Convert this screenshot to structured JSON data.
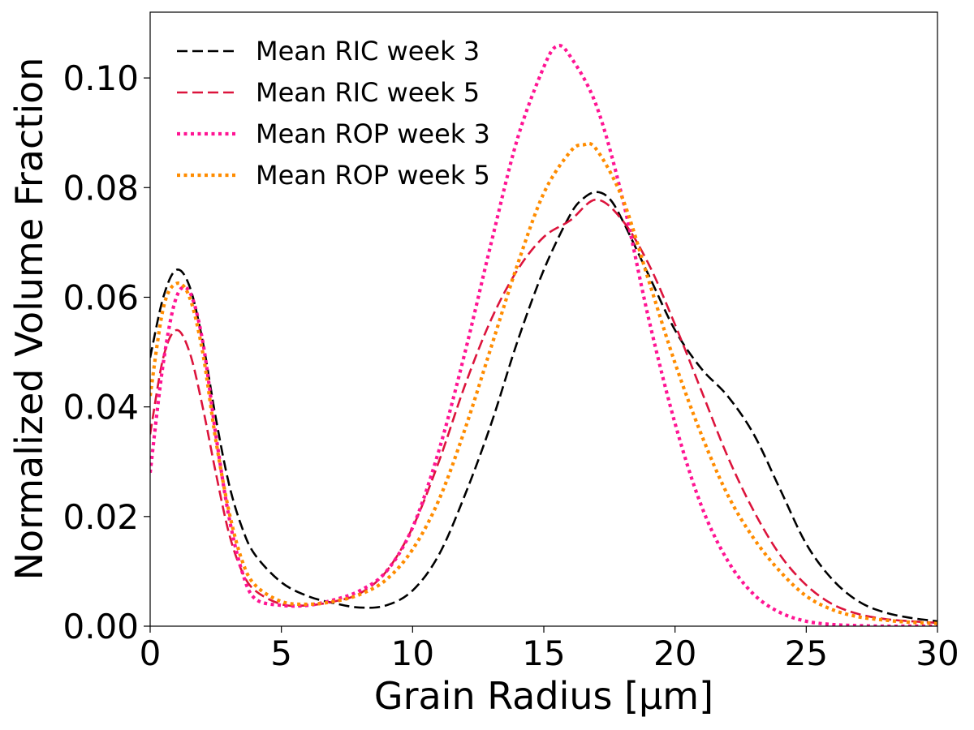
{
  "chart_data": {
    "type": "line",
    "title": "",
    "xlabel": "Grain Radius [μm]",
    "ylabel": "Normalized Volume Fraction",
    "xlim": [
      0,
      30
    ],
    "ylim": [
      0,
      0.112
    ],
    "xticks": [
      0,
      5,
      10,
      15,
      20,
      25,
      30
    ],
    "xtick_labels": [
      "0",
      "5",
      "10",
      "15",
      "20",
      "25",
      "30"
    ],
    "yticks": [
      0,
      0.02,
      0.04,
      0.06,
      0.08,
      0.1
    ],
    "ytick_labels": [
      "0.00",
      "0.02",
      "0.04",
      "0.06",
      "0.08",
      "0.10"
    ],
    "grid": false,
    "legend_position": "top-left",
    "series": [
      {
        "name": "Mean RIC week 3",
        "color": "#000000",
        "style": "dashed",
        "x": [
          0,
          0.5,
          1,
          1.5,
          2,
          2.5,
          3,
          3.5,
          4,
          5,
          6,
          7,
          8,
          9,
          10,
          11,
          12,
          13,
          14,
          15,
          16,
          16.5,
          17,
          17.5,
          18,
          19,
          20,
          21,
          22,
          23,
          24,
          25,
          26,
          27,
          28,
          29,
          30
        ],
        "y": [
          0.049,
          0.06,
          0.065,
          0.062,
          0.052,
          0.038,
          0.026,
          0.018,
          0.013,
          0.008,
          0.0055,
          0.0042,
          0.0034,
          0.0038,
          0.0065,
          0.013,
          0.024,
          0.037,
          0.052,
          0.065,
          0.075,
          0.078,
          0.0792,
          0.078,
          0.074,
          0.064,
          0.054,
          0.047,
          0.042,
          0.035,
          0.025,
          0.015,
          0.0085,
          0.0045,
          0.0025,
          0.0015,
          0.0009
        ]
      },
      {
        "name": "Mean RIC week 5",
        "color": "#dc143c",
        "style": "dashed",
        "x": [
          0,
          0.5,
          1,
          1.5,
          2,
          2.5,
          3,
          3.5,
          4,
          5,
          6,
          7,
          8,
          9,
          10,
          11,
          12,
          13,
          14,
          15,
          16,
          17,
          18,
          19,
          20,
          21,
          22,
          23,
          24,
          25,
          26,
          27,
          28,
          29,
          30
        ],
        "y": [
          0.035,
          0.049,
          0.054,
          0.05,
          0.04,
          0.028,
          0.017,
          0.01,
          0.0065,
          0.004,
          0.0038,
          0.0045,
          0.006,
          0.01,
          0.018,
          0.03,
          0.044,
          0.056,
          0.065,
          0.071,
          0.074,
          0.0778,
          0.074,
          0.066,
          0.055,
          0.043,
          0.031,
          0.021,
          0.013,
          0.0075,
          0.004,
          0.0022,
          0.0013,
          0.0009,
          0.0006
        ]
      },
      {
        "name": "Mean ROP week 3",
        "color": "#ff1493",
        "style": "dotted",
        "x": [
          0,
          0.5,
          1,
          1.5,
          2,
          2.5,
          3,
          3.5,
          4,
          5,
          6,
          7,
          8,
          9,
          10,
          11,
          12,
          13,
          14,
          15,
          15.5,
          16,
          17,
          18,
          19,
          20,
          21,
          22,
          23,
          24,
          25,
          26,
          27,
          28,
          29,
          30
        ],
        "y": [
          0.028,
          0.048,
          0.06,
          0.061,
          0.052,
          0.035,
          0.02,
          0.01,
          0.005,
          0.0038,
          0.0038,
          0.0048,
          0.0065,
          0.01,
          0.018,
          0.032,
          0.05,
          0.07,
          0.089,
          0.102,
          0.1058,
          0.104,
          0.095,
          0.078,
          0.056,
          0.037,
          0.022,
          0.012,
          0.0058,
          0.0025,
          0.0009,
          0.0003,
          0.0001,
          0.0,
          0.0,
          0.0
        ]
      },
      {
        "name": "Mean ROP week 5",
        "color": "#ff8c00",
        "style": "dotted",
        "x": [
          0,
          0.5,
          1,
          1.5,
          2,
          2.5,
          3,
          3.5,
          4,
          5,
          6,
          7,
          8,
          9,
          10,
          11,
          12,
          13,
          14,
          15,
          16,
          16.5,
          17,
          18,
          19,
          20,
          21,
          22,
          23,
          24,
          25,
          26,
          27,
          28,
          29,
          30
        ],
        "y": [
          0.042,
          0.058,
          0.0625,
          0.06,
          0.05,
          0.034,
          0.021,
          0.012,
          0.0075,
          0.0045,
          0.004,
          0.0045,
          0.0058,
          0.0085,
          0.014,
          0.023,
          0.036,
          0.051,
          0.066,
          0.079,
          0.0865,
          0.0878,
          0.087,
          0.078,
          0.063,
          0.048,
          0.035,
          0.024,
          0.016,
          0.01,
          0.0055,
          0.003,
          0.0017,
          0.0011,
          0.0007,
          0.0005
        ]
      }
    ]
  }
}
